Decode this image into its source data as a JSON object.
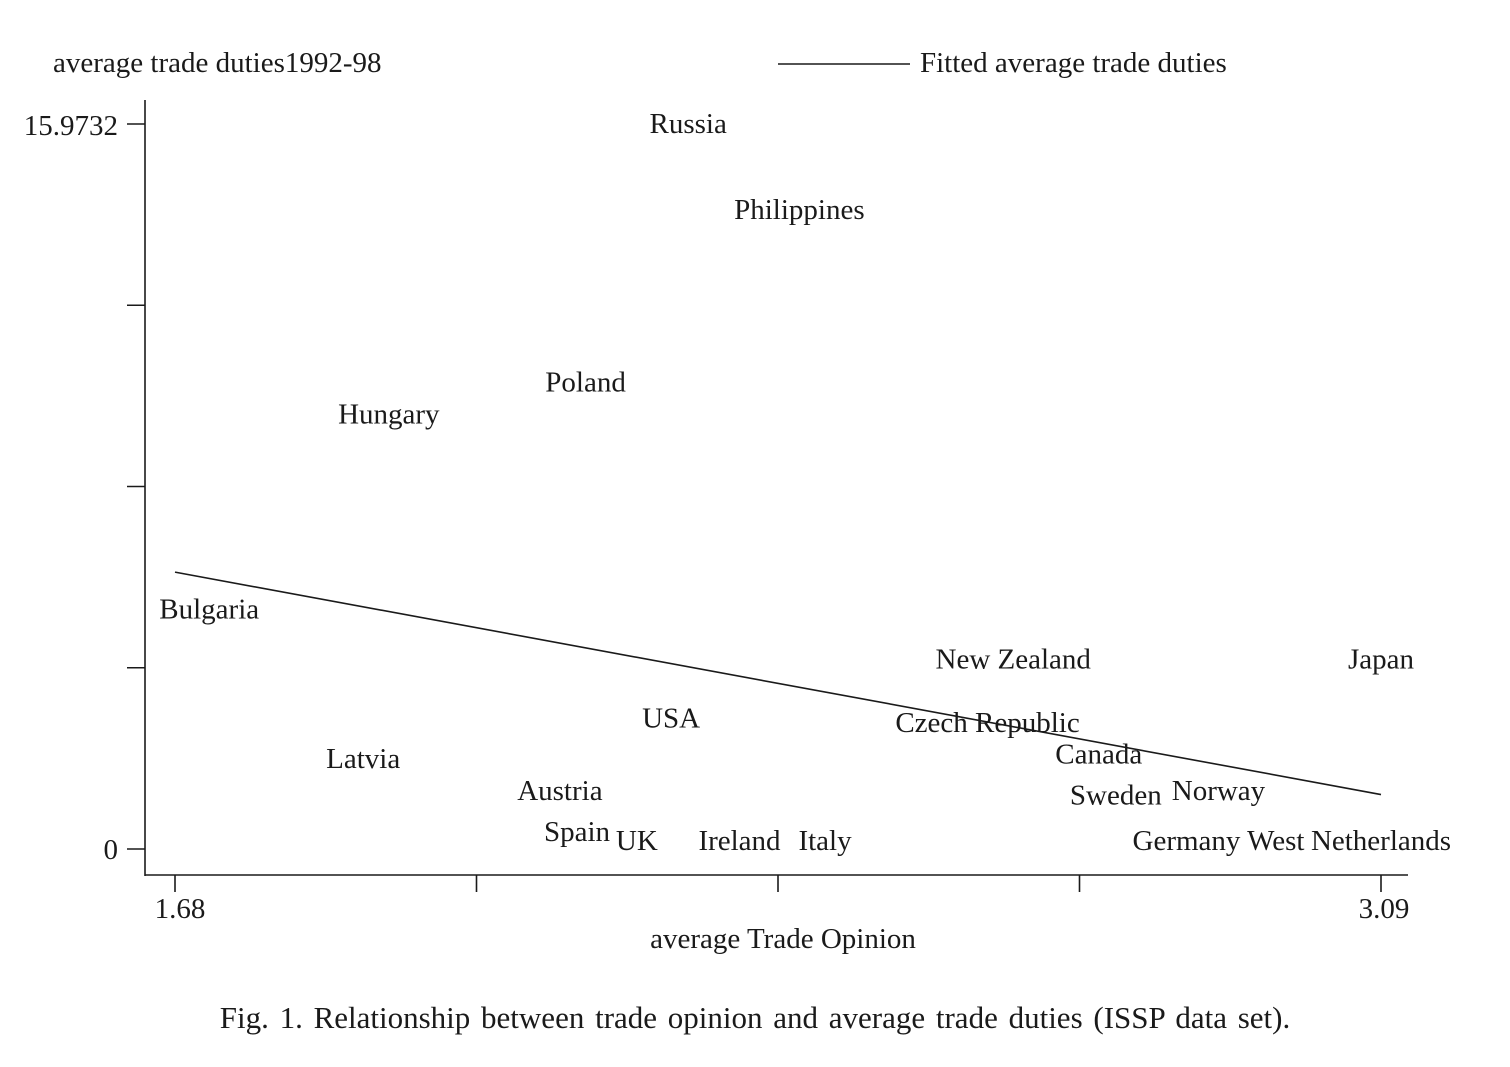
{
  "chart_data": {
    "type": "scatter",
    "ylabel": "average trade duties1992-98",
    "xlabel": "average Trade Opinion",
    "xlim": [
      1.68,
      3.09
    ],
    "ylim": [
      0,
      15.9732
    ],
    "x_tick_labels": [
      "1.68",
      "3.09"
    ],
    "y_tick_labels": [
      "15.9732",
      "0"
    ],
    "legend": {
      "position": "top-right",
      "entries": [
        "Fitted average trade duties"
      ]
    },
    "points": [
      {
        "label": "Russia",
        "x": 2.28,
        "y": 16.0
      },
      {
        "label": "Philippines",
        "x": 2.41,
        "y": 14.1
      },
      {
        "label": "Poland",
        "x": 2.16,
        "y": 10.3
      },
      {
        "label": "Hungary",
        "x": 1.93,
        "y": 9.6
      },
      {
        "label": "Bulgaria",
        "x": 1.72,
        "y": 5.3
      },
      {
        "label": "New Zealand",
        "x": 2.66,
        "y": 4.2
      },
      {
        "label": "Japan",
        "x": 3.09,
        "y": 4.2
      },
      {
        "label": "USA",
        "x": 2.26,
        "y": 2.9
      },
      {
        "label": "Czech Republic",
        "x": 2.63,
        "y": 2.8
      },
      {
        "label": "Canada",
        "x": 2.76,
        "y": 2.1
      },
      {
        "label": "Latvia",
        "x": 1.9,
        "y": 2.0
      },
      {
        "label": "Austria",
        "x": 2.13,
        "y": 1.3
      },
      {
        "label": "Norway",
        "x": 2.9,
        "y": 1.3
      },
      {
        "label": "Sweden",
        "x": 2.78,
        "y": 1.2
      },
      {
        "label": "Spain",
        "x": 2.15,
        "y": 0.4
      },
      {
        "label": "UK",
        "x": 2.22,
        "y": 0.2
      },
      {
        "label": "Ireland",
        "x": 2.34,
        "y": 0.2
      },
      {
        "label": "Italy",
        "x": 2.44,
        "y": 0.2
      },
      {
        "label": "Germany West",
        "x": 2.9,
        "y": 0.2
      },
      {
        "label": "Netherlands",
        "x": 3.09,
        "y": 0.2
      }
    ],
    "fitted_line": {
      "x": [
        1.68,
        3.09
      ],
      "y": [
        6.1,
        1.2
      ]
    }
  },
  "figure_caption": "Fig. 1. Relationship between trade opinion and average trade duties (ISSP data set)."
}
